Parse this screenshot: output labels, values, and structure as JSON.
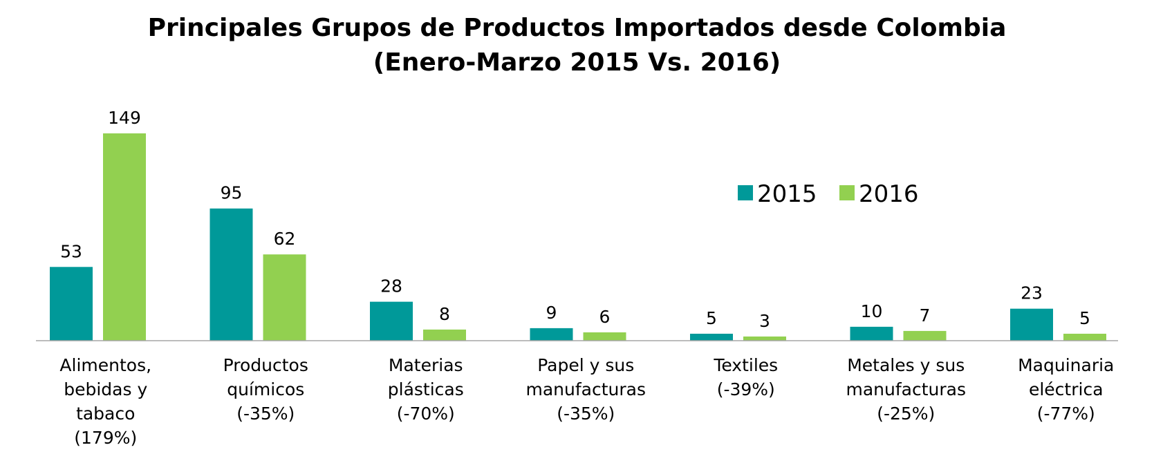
{
  "chart_data": {
    "type": "bar",
    "title_lines": [
      "Principales Grupos de Productos Importados desde Colombia",
      "(Enero-Marzo 2015 Vs. 2016)"
    ],
    "categories": [
      [
        "Alimentos,",
        "bebidas y",
        "tabaco",
        "(179%)"
      ],
      [
        "Productos",
        "químicos",
        "(-35%)"
      ],
      [
        "Materias",
        "plásticas",
        "(-70%)"
      ],
      [
        "Papel y sus",
        "manufacturas",
        "(-35%)"
      ],
      [
        "Textiles",
        "(-39%)"
      ],
      [
        "Metales y sus",
        "manufacturas",
        "(-25%)"
      ],
      [
        "Maquinaria",
        "eléctrica",
        "(-77%)"
      ]
    ],
    "series": [
      {
        "name": "2015",
        "color": "#009999",
        "values": [
          53,
          95,
          28,
          9,
          5,
          10,
          23
        ]
      },
      {
        "name": "2016",
        "color": "#92D050",
        "values": [
          149,
          62,
          8,
          6,
          3,
          7,
          5
        ]
      }
    ],
    "ylim": [
      0,
      149
    ],
    "grid": false,
    "y_axis_visible": false,
    "legend_position": "top-right",
    "axis_color": "#A6A6A6"
  }
}
